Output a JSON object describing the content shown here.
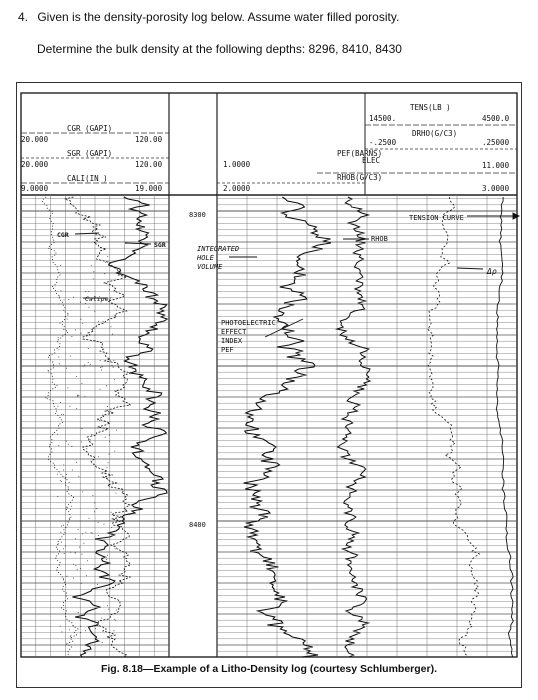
{
  "question": {
    "number": "4.",
    "text": "Given is the density-porosity log below. Assume water filled porosity.",
    "instruction": "Determine the bulk density at the following depths: 8296, 8410, 8430"
  },
  "log": {
    "left_track": {
      "cgr_label": "CGR (GAPI)",
      "cgr_min": "20.000",
      "cgr_max": "120.00",
      "sgr_label": "SGR (GAPI)",
      "sgr_min": "20.000",
      "sgr_max": "120.00",
      "cali_label": "CALI(IN )",
      "cali_min": "9.0000",
      "cali_max": "19.000"
    },
    "middle": {
      "pef_min": "1.0000",
      "pef_max2": "2.0000",
      "depth_8300": "8300",
      "depth_8400": "8400"
    },
    "right_track": {
      "tens_label": "TENS(LB )",
      "tens_min": "14500.",
      "tens_max": "4500.0",
      "drho_label": "DRHO(G/C3)",
      "drho_min": "-.2500",
      "drho_max": ".25000",
      "pef_label": "PEF(BARNS)",
      "pef_sub": "ELEC",
      "rhob_label": "RHOB(G/C3)",
      "rhob_max": "11.000",
      "rhob_max2": "3.0000"
    },
    "annotations": {
      "cgr": "CGR",
      "sgr": "SGR",
      "caliper": "Caliper",
      "ihv_1": "INTEGRATED",
      "ihv_2": "HOLE",
      "ihv_3": "VOLUME",
      "pe_1": "PHOTOELECTRIC",
      "pe_2": "EFFECT",
      "pe_3": "INDEX",
      "pe_4": "PEF",
      "rhob": "RHOB",
      "tension": "TENSION CURVE",
      "delta_rho": "Δρ"
    },
    "caption": "Fig. 8.18—Example of a Litho-Density log (courtesy Schlumberger)."
  }
}
